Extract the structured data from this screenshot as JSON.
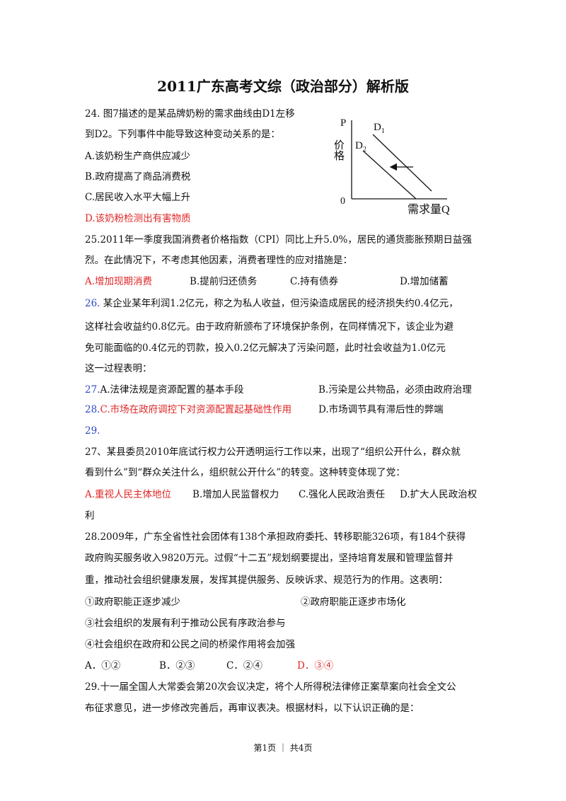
{
  "header": {
    "title": "2011广东高考文综（政治部分）解析版"
  },
  "figure": {
    "p": "P",
    "price": "价格",
    "d1": {
      "letter": "D",
      "sub": "1"
    },
    "d2": {
      "letter": "D",
      "sub": "2"
    },
    "origin": "0",
    "q": "需求量Q"
  },
  "lines": [
    [
      [
        "24.  图7描述的是某品牌奶粉的需求曲线由D1左移"
      ]
    ],
    [
      [
        "到D2。下列事件中能导致这种变动关系的是："
      ]
    ],
    [
      [
        "A.该奶粉生产商供应减少"
      ]
    ],
    [
      [
        "B.政府提高了商品消费税"
      ]
    ],
    [
      [
        "C.居民收入水平大幅上升"
      ]
    ],
    [
      [
        {
          "text": "D.该奶粉检测出有害物质",
          "color": "#e02828"
        }
      ]
    ],
    [
      [
        "25.2011年一季度我国消费者价格指数（CPI）同比上升5.0%，居民的通货膨胀预期日益强"
      ]
    ],
    [
      [
        "烈。在此情况下，不考虑其他因素，消费者理性的应对措施是："
      ]
    ],
    [
      [
        {
          "text": "A.增加现期消费",
          "color": "#e02828"
        }
      ],
      [
        "B.提前归还债务"
      ],
      [
        "C.持有债券"
      ],
      [
        "D.增加储蓄"
      ]
    ],
    [
      [
        {
          "text": "26.",
          "color": "#2b48c8"
        },
        " 某企业某年利润1.2亿元，称之为私人收益，但污染造成居民的经济损失约0.4亿元，"
      ]
    ],
    [
      [
        "这样社会收益约0.8亿元。由于政府新颁布了环境保护条例，在同样情况下，该企业为避"
      ]
    ],
    [
      [
        "免可能面临的0.4亿元的罚款，投入0.2亿元解决了污染问题，此时社会收益为1.0亿元"
      ]
    ],
    [
      [
        "这一过程表明："
      ]
    ],
    [
      [
        {
          "text": "27.",
          "color": "#2b48c8"
        },
        "A.法律法规是资源配置的基本手段"
      ],
      [
        "B.污染是公共物品，必须由政府治理"
      ]
    ],
    [
      [
        {
          "text": "28.",
          "color": "#2b48c8"
        },
        {
          "text": "C.市场在政府调控下对资源配置起基础性作用",
          "color": "#e02828"
        }
      ],
      [
        "D.市场调节具有滞后性的弊端"
      ]
    ],
    [
      [
        {
          "text": "29.",
          "color": "#2b48c8"
        }
      ]
    ],
    [
      [
        "27、某县委员2010年底试行权力公开透明运行工作以来，出现了“组织公开什么，群众就"
      ]
    ],
    [
      [
        "看到什么”到“群众关注什么，组织就公开什么”的转变。这种转变体现了党："
      ]
    ],
    [
      [
        {
          "text": "A.重视人民主体地位",
          "color": "#e02828"
        }
      ],
      [
        "B.增加人民监督权力"
      ],
      [
        "C.强化人民政治责任"
      ],
      [
        "D.扩大人民政治权"
      ]
    ],
    [
      [
        "利"
      ]
    ],
    [
      [
        "28.2009年，广东全省性社会团体有138个承担政府委托、转移职能326项，有184个获得"
      ]
    ],
    [
      [
        "政府购买服务收入9820万元。过假“十二五”规划纲要提出，坚持培育发展和管理监督并"
      ]
    ],
    [
      [
        "重，推动社会组织健康发展，发挥其提供服务、反映诉求、规范行为的作用。这表明："
      ]
    ],
    [
      [
        "①政府职能正逐步减少"
      ],
      [
        "②政府职能正逐步市场化"
      ]
    ],
    [
      [
        "③社会组织的发展有利于推动公民有序政治参与"
      ]
    ],
    [
      [
        "④社会组织在政府和公民之间的桥梁作用将会加强"
      ]
    ],
    [
      [
        "A．①②"
      ],
      [
        "B．②③"
      ],
      [
        "C．②④"
      ],
      [
        {
          "text": "D．③④",
          "color": "#e02828"
        }
      ]
    ],
    [
      [
        "29.十一届全国人大常委会第20次会议决定，将个人所得税法律修正案草案向社会全文公"
      ]
    ],
    [
      [
        "布征求意见，进一步修改完善后，再审议表决。根据材料，以下认识正确的是："
      ]
    ]
  ],
  "footer": "第1页 ｜ 共4页"
}
